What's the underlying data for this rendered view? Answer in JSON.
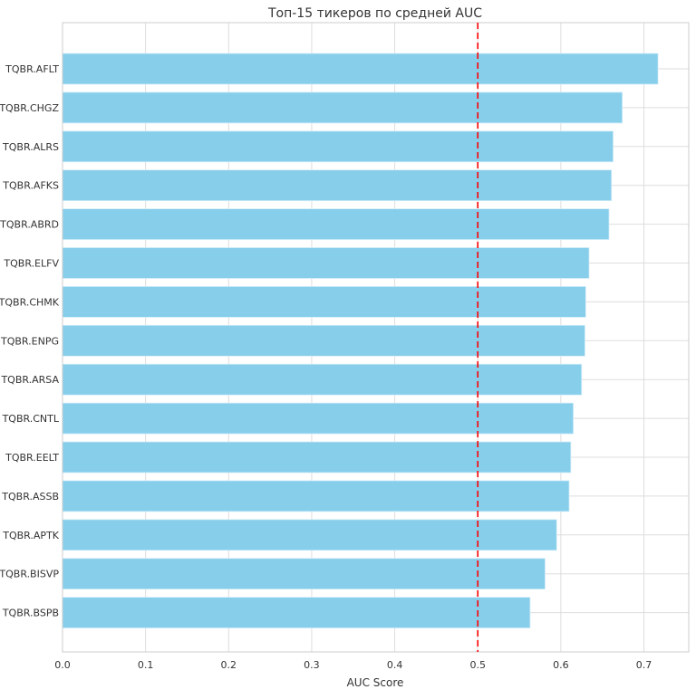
{
  "chart_data": {
    "type": "bar",
    "orientation": "horizontal",
    "title": "Топ-15 тикеров по средней AUC",
    "xlabel": "AUC Score",
    "ylabel": "",
    "xlim": [
      0,
      0.754
    ],
    "xticks": [
      "0.0",
      "0.1",
      "0.2",
      "0.3",
      "0.4",
      "0.5",
      "0.6",
      "0.7"
    ],
    "grid": true,
    "bar_color": "#87CEEB",
    "categories": [
      "TQBR.AFLT",
      "TQBR.CHGZ",
      "TQBR.ALRS",
      "TQBR.AFKS",
      "TQBR.ABRD",
      "TQBR.ELFV",
      "TQBR.CHMK",
      "TQBR.ENPG",
      "TQBR.ARSA",
      "TQBR.CNTL",
      "TQBR.EELT",
      "TQBR.ASSB",
      "TQBR.APTK",
      "TQBR.BISVP",
      "TQBR.BSPB"
    ],
    "values": [
      0.717,
      0.674,
      0.663,
      0.661,
      0.658,
      0.634,
      0.63,
      0.629,
      0.625,
      0.615,
      0.612,
      0.61,
      0.595,
      0.581,
      0.563
    ],
    "reference_line": {
      "x": 0.5,
      "color": "#FF0000",
      "style": "dashed"
    }
  }
}
